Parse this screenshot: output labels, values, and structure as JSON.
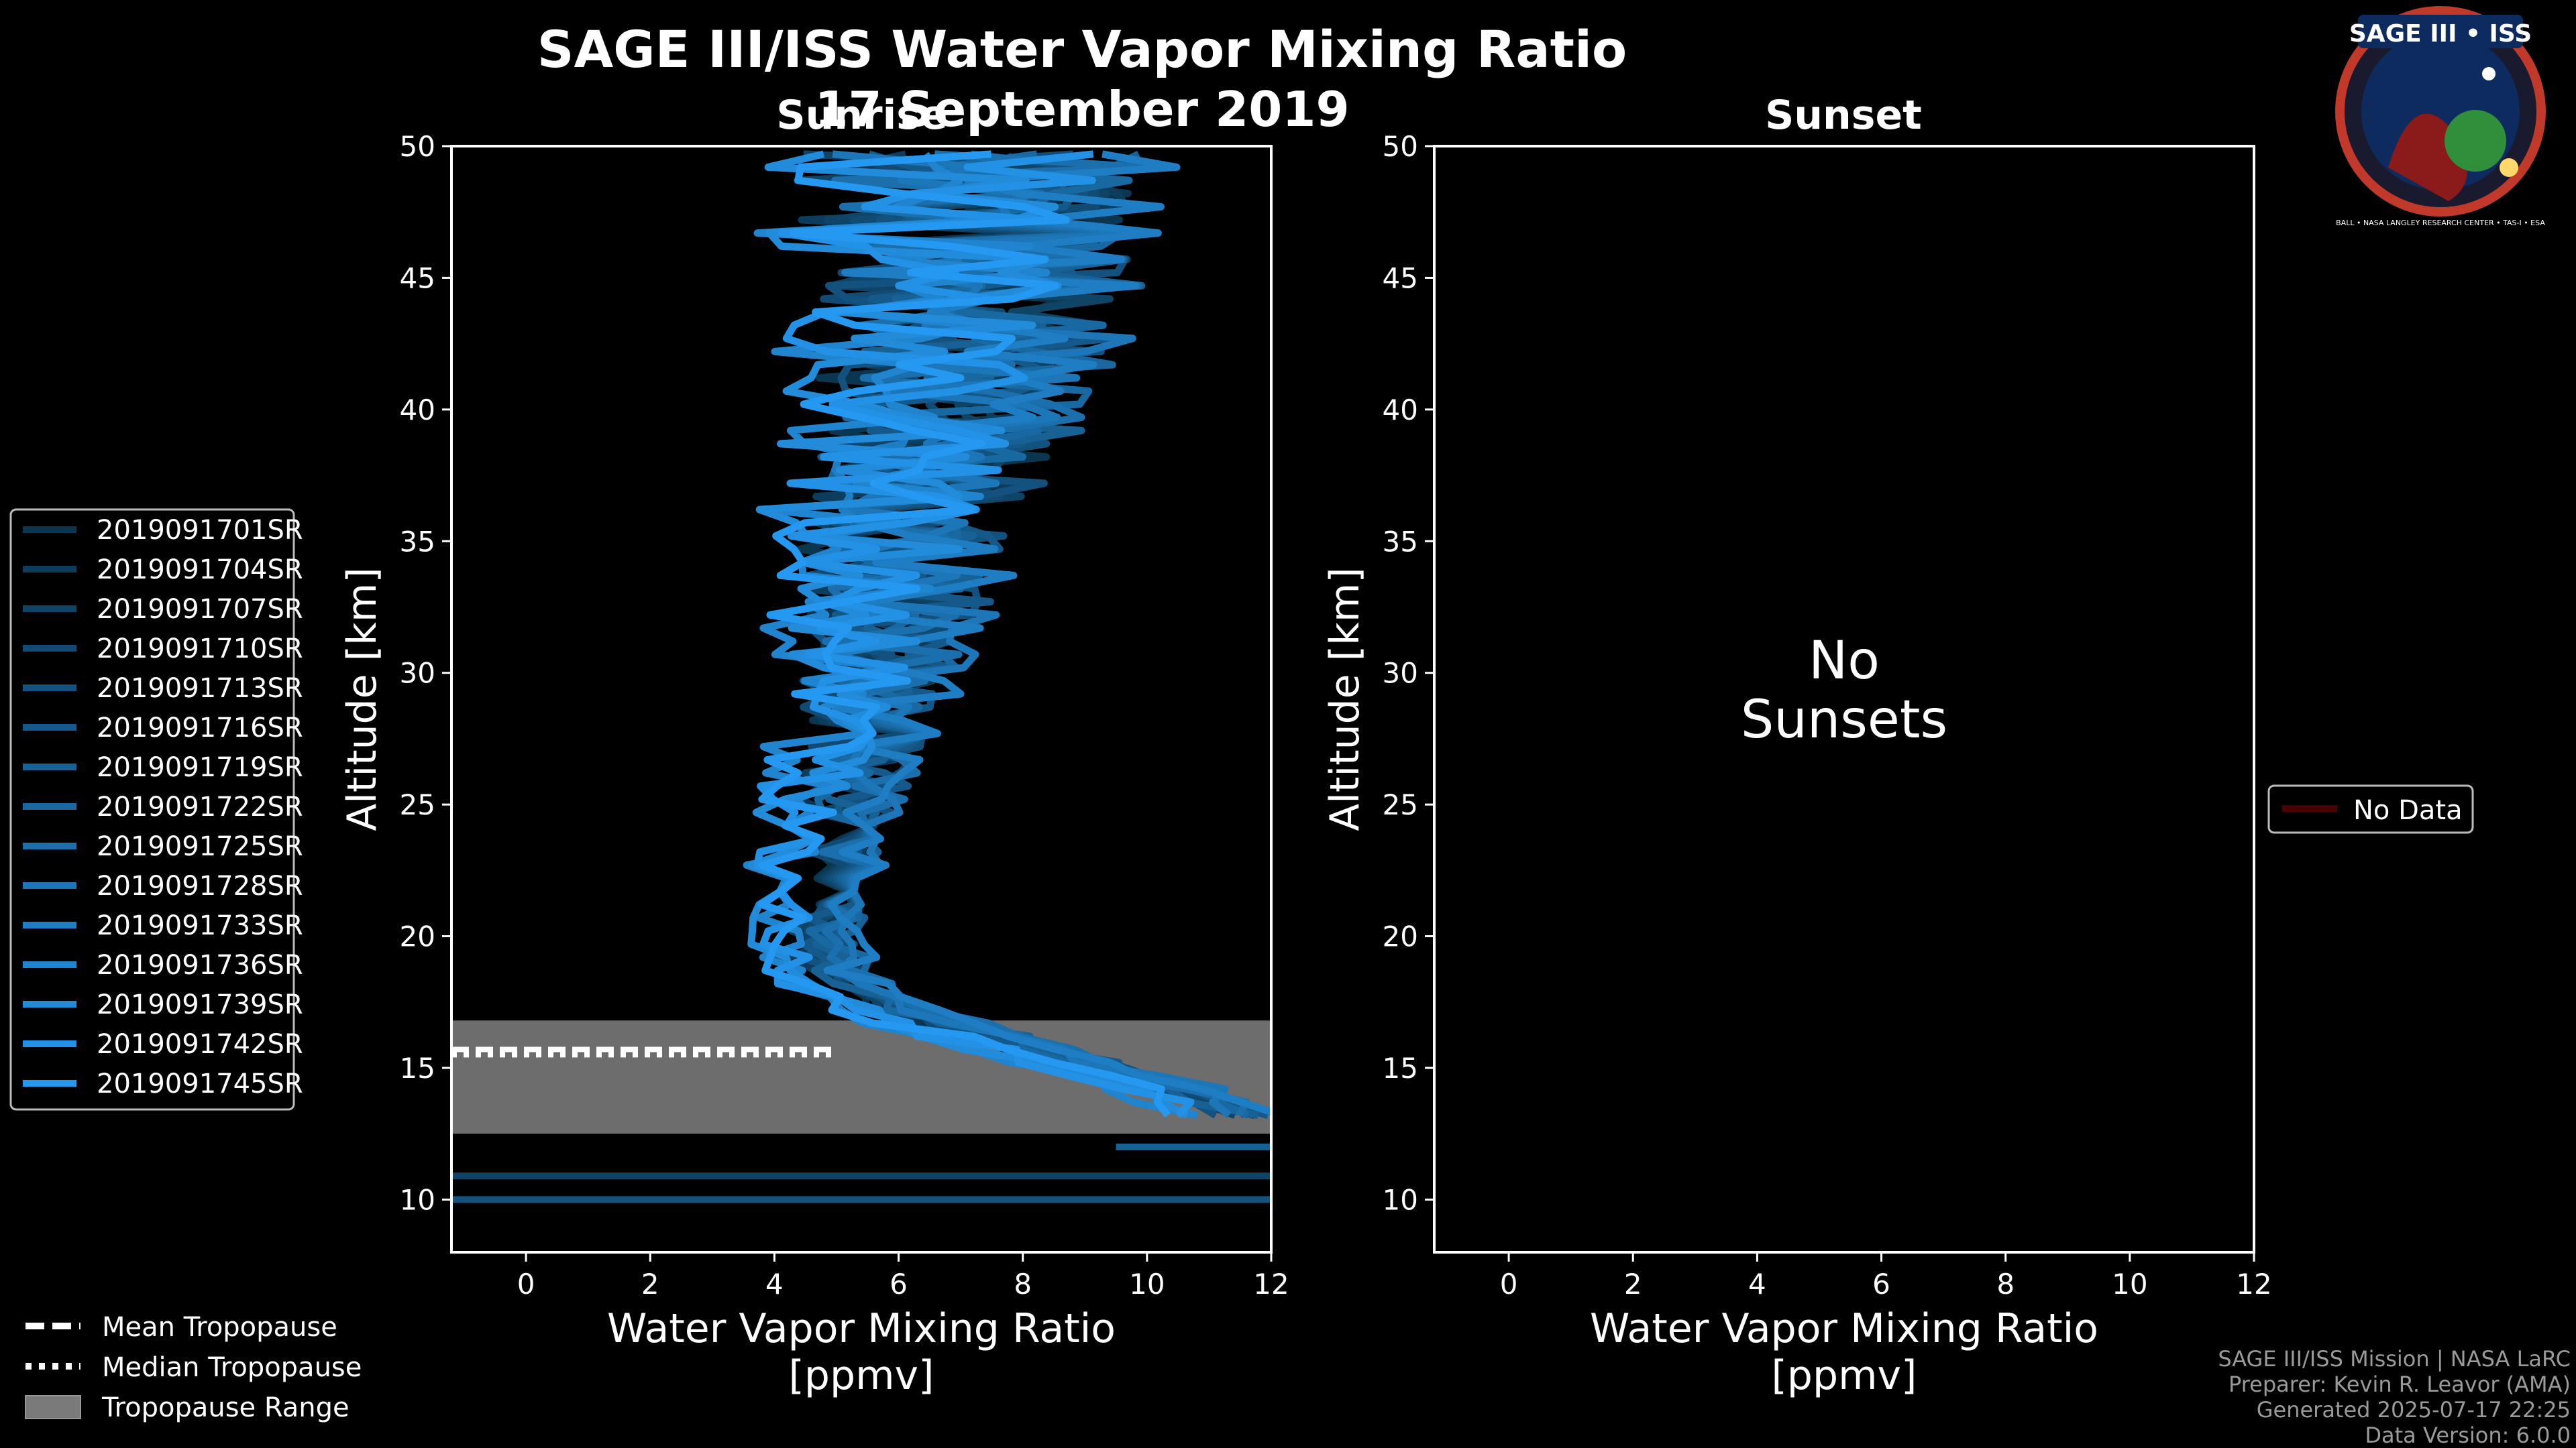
{
  "header": {
    "title": "SAGE III/ISS Water Vapor Mixing Ratio",
    "date": "17 September 2019",
    "left_panel": "Sunrise",
    "right_panel": "Sunset"
  },
  "logo": {
    "text": "SAGE III • ISS",
    "ring_text": "BALL • NASA LANGLEY RESEARCH CENTER • TAS-I • ESA"
  },
  "left_legend": {
    "items": [
      "2019091701SR",
      "2019091704SR",
      "2019091707SR",
      "2019091710SR",
      "2019091713SR",
      "2019091716SR",
      "2019091719SR",
      "2019091722SR",
      "2019091725SR",
      "2019091728SR",
      "2019091733SR",
      "2019091736SR",
      "2019091739SR",
      "2019091742SR",
      "2019091745SR"
    ],
    "colors": [
      "#0b3650",
      "#0d3d5c",
      "#0f4467",
      "#114b73",
      "#13527e",
      "#15598a",
      "#176195",
      "#1868a1",
      "#1a6fac",
      "#1c76b8",
      "#1e7dc3",
      "#2084cf",
      "#228bda",
      "#2392e6",
      "#2599f1"
    ]
  },
  "right_legend": {
    "label": "No Data",
    "color": "#4a0000"
  },
  "bottom_legend": {
    "mean": "Mean Tropopause",
    "median": "Median Tropopause",
    "range": "Tropopause Range"
  },
  "no_data_text": {
    "line1": "No",
    "line2": "Sunsets"
  },
  "footer": {
    "line1": "SAGE III/ISS Mission | NASA LaRC",
    "line2": "Preparer: Kevin R. Leavor (AMA)",
    "line3": "Generated 2025-07-17 22:25",
    "line4": "Data Version: 6.0.0"
  },
  "chart_data": [
    {
      "type": "line",
      "title": "Sunrise",
      "xlabel": "Water Vapor Mixing Ratio [ppmv]",
      "ylabel": "Altitude [km]",
      "xlim": [
        -1.2,
        12
      ],
      "ylim": [
        8,
        50
      ],
      "xticks": [
        0,
        2,
        4,
        6,
        8,
        10,
        12
      ],
      "yticks": [
        10,
        15,
        20,
        25,
        30,
        35,
        40,
        45,
        50
      ],
      "tropopause": {
        "range": [
          12.5,
          16.8
        ],
        "mean": 15.7,
        "median": 15.5
      },
      "median_profile": {
        "altitude": [
          10,
          12,
          14,
          15,
          16,
          17,
          18,
          19,
          20,
          22,
          24,
          26,
          28,
          30,
          32,
          34,
          36,
          38,
          40,
          42,
          44,
          46,
          48,
          50
        ],
        "values": [
          12,
          12,
          10.5,
          9,
          7.5,
          6,
          5,
          4.6,
          4.5,
          4.6,
          4.8,
          5.0,
          5.2,
          5.4,
          5.6,
          5.8,
          6.0,
          6.3,
          6.6,
          6.8,
          7.0,
          7.0,
          7.0,
          7.0
        ]
      },
      "series_names": [
        "2019091701SR",
        "2019091704SR",
        "2019091707SR",
        "2019091710SR",
        "2019091713SR",
        "2019091716SR",
        "2019091719SR",
        "2019091722SR",
        "2019091725SR",
        "2019091728SR",
        "2019091733SR",
        "2019091736SR",
        "2019091739SR",
        "2019091742SR",
        "2019091745SR"
      ]
    },
    {
      "type": "line",
      "title": "Sunset",
      "xlabel": "Water Vapor Mixing Ratio [ppmv]",
      "ylabel": "Altitude [km]",
      "xlim": [
        -1.2,
        12
      ],
      "ylim": [
        8,
        50
      ],
      "xticks": [
        0,
        2,
        4,
        6,
        8,
        10,
        12
      ],
      "yticks": [
        10,
        15,
        20,
        25,
        30,
        35,
        40,
        45,
        50
      ],
      "series_names": []
    }
  ]
}
